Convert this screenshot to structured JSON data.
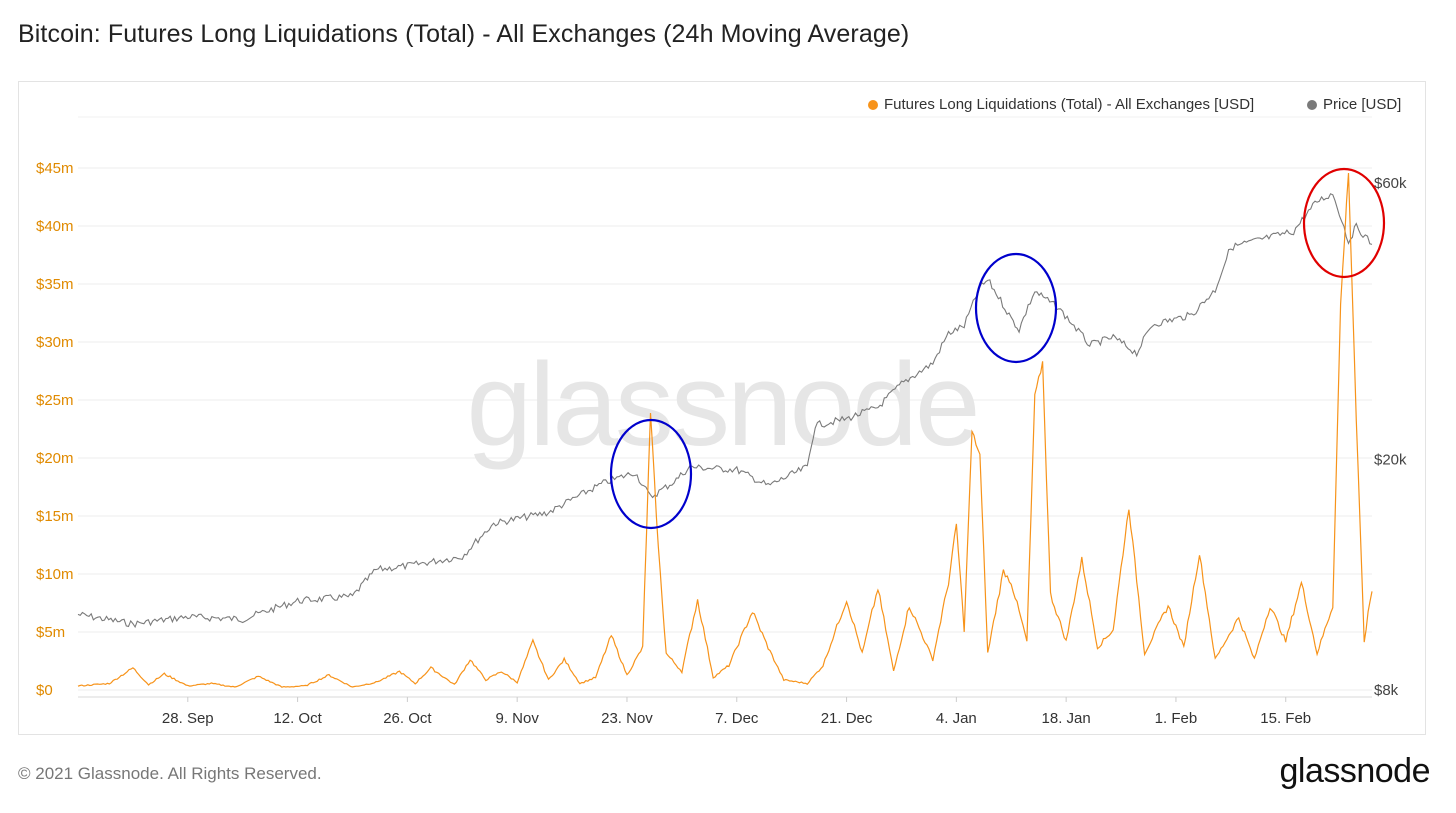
{
  "title": "Bitcoin: Futures Long Liquidations (Total) - All Exchanges (24h Moving Average)",
  "footer": {
    "copyright": "© 2021 Glassnode. All Rights Reserved.",
    "logo_text": "glassnode"
  },
  "watermark": "glassnode",
  "colors": {
    "liquidations": "#f7931a",
    "price": "#7a7a7a",
    "left_axis_text": "#e08a00",
    "right_axis_text": "#444444",
    "circle_blue": "#0000cc",
    "circle_red": "#e00000"
  },
  "chart_data": {
    "type": "line",
    "x_axis": {
      "start": "2020-09-14",
      "end": "2021-02-26",
      "ticks": [
        "28. Sep",
        "12. Oct",
        "26. Oct",
        "9. Nov",
        "23. Nov",
        "7. Dec",
        "21. Dec",
        "4. Jan",
        "18. Jan",
        "1. Feb",
        "15. Feb"
      ]
    },
    "y_left": {
      "ticks": [
        "$0",
        "$5m",
        "$10m",
        "$15m",
        "$20m",
        "$25m",
        "$30m",
        "$35m",
        "$40m",
        "$45m"
      ],
      "range": [
        0,
        45000000
      ]
    },
    "y_right": {
      "scale": "log",
      "ticks": [
        "$8k",
        "$20k",
        "$60k"
      ],
      "range": [
        8000,
        60000
      ]
    },
    "legend": {
      "position": "top-right"
    },
    "series": [
      {
        "name": "Futures Long Liquidations (Total) - All Exchanges [USD]",
        "axis": "left",
        "points": [
          [
            "2020-09-14",
            0.3
          ],
          [
            "2020-09-18",
            0.5
          ],
          [
            "2020-09-21",
            1.8
          ],
          [
            "2020-09-23",
            0.4
          ],
          [
            "2020-09-25",
            1.3
          ],
          [
            "2020-09-28",
            0.3
          ],
          [
            "2020-10-01",
            0.5
          ],
          [
            "2020-10-04",
            0.2
          ],
          [
            "2020-10-07",
            1.1
          ],
          [
            "2020-10-10",
            0.2
          ],
          [
            "2020-10-13",
            0.3
          ],
          [
            "2020-10-16",
            1.2
          ],
          [
            "2020-10-19",
            0.2
          ],
          [
            "2020-10-22",
            0.6
          ],
          [
            "2020-10-25",
            1.5
          ],
          [
            "2020-10-27",
            0.5
          ],
          [
            "2020-10-29",
            1.8
          ],
          [
            "2020-11-01",
            0.4
          ],
          [
            "2020-11-03",
            2.5
          ],
          [
            "2020-11-05",
            0.8
          ],
          [
            "2020-11-07",
            1.5
          ],
          [
            "2020-11-09",
            0.6
          ],
          [
            "2020-11-11",
            4.0
          ],
          [
            "2020-11-13",
            0.8
          ],
          [
            "2020-11-15",
            2.5
          ],
          [
            "2020-11-17",
            0.5
          ],
          [
            "2020-11-19",
            1.0
          ],
          [
            "2020-11-21",
            4.5
          ],
          [
            "2020-11-23",
            1.2
          ],
          [
            "2020-11-25",
            3.5
          ],
          [
            "2020-11-26",
            23.5
          ],
          [
            "2020-11-27",
            12.0
          ],
          [
            "2020-11-28",
            3.0
          ],
          [
            "2020-11-30",
            1.5
          ],
          [
            "2020-12-02",
            7.5
          ],
          [
            "2020-12-04",
            1.0
          ],
          [
            "2020-12-06",
            2.0
          ],
          [
            "2020-12-09",
            6.5
          ],
          [
            "2020-12-11",
            3.5
          ],
          [
            "2020-12-13",
            0.8
          ],
          [
            "2020-12-16",
            0.5
          ],
          [
            "2020-12-18",
            2.0
          ],
          [
            "2020-12-21",
            7.5
          ],
          [
            "2020-12-23",
            3.0
          ],
          [
            "2020-12-25",
            8.5
          ],
          [
            "2020-12-27",
            1.5
          ],
          [
            "2020-12-29",
            7.0
          ],
          [
            "2021-01-01",
            2.5
          ],
          [
            "2021-01-03",
            9.0
          ],
          [
            "2021-01-04",
            14.0
          ],
          [
            "2021-01-05",
            5.0
          ],
          [
            "2021-01-06",
            22.0
          ],
          [
            "2021-01-07",
            20.0
          ],
          [
            "2021-01-08",
            3.0
          ],
          [
            "2021-01-10",
            10.0
          ],
          [
            "2021-01-11",
            9.0
          ],
          [
            "2021-01-13",
            4.0
          ],
          [
            "2021-01-14",
            25.0
          ],
          [
            "2021-01-15",
            28.0
          ],
          [
            "2021-01-16",
            8.0
          ],
          [
            "2021-01-18",
            4.0
          ],
          [
            "2021-01-20",
            11.0
          ],
          [
            "2021-01-22",
            3.5
          ],
          [
            "2021-01-24",
            5.0
          ],
          [
            "2021-01-26",
            15.5
          ],
          [
            "2021-01-28",
            3.0
          ],
          [
            "2021-01-31",
            7.0
          ],
          [
            "2021-02-02",
            3.5
          ],
          [
            "2021-02-04",
            11.5
          ],
          [
            "2021-02-06",
            2.5
          ],
          [
            "2021-02-09",
            6.0
          ],
          [
            "2021-02-11",
            2.5
          ],
          [
            "2021-02-13",
            7.0
          ],
          [
            "2021-02-15",
            4.0
          ],
          [
            "2021-02-17",
            9.0
          ],
          [
            "2021-02-19",
            3.0
          ],
          [
            "2021-02-21",
            7.0
          ],
          [
            "2021-02-22",
            33.0
          ],
          [
            "2021-02-23",
            44.5
          ],
          [
            "2021-02-24",
            23.0
          ],
          [
            "2021-02-25",
            4.0
          ],
          [
            "2021-02-26",
            8.5
          ]
        ]
      },
      {
        "name": "Price [USD]",
        "axis": "right",
        "points": [
          [
            "2020-09-14",
            10800
          ],
          [
            "2020-09-21",
            10400
          ],
          [
            "2020-09-28",
            10700
          ],
          [
            "2020-10-05",
            10600
          ],
          [
            "2020-10-12",
            11400
          ],
          [
            "2020-10-19",
            11600
          ],
          [
            "2020-10-22",
            12900
          ],
          [
            "2020-10-26",
            13100
          ],
          [
            "2020-11-02",
            13600
          ],
          [
            "2020-11-06",
            15500
          ],
          [
            "2020-11-13",
            16200
          ],
          [
            "2020-11-20",
            18200
          ],
          [
            "2020-11-24",
            19000
          ],
          [
            "2020-11-26",
            17200
          ],
          [
            "2020-11-29",
            18300
          ],
          [
            "2020-12-01",
            19400
          ],
          [
            "2020-12-07",
            19200
          ],
          [
            "2020-12-11",
            18000
          ],
          [
            "2020-12-16",
            19400
          ],
          [
            "2020-12-17",
            22900
          ],
          [
            "2020-12-21",
            23500
          ],
          [
            "2020-12-25",
            24600
          ],
          [
            "2020-12-28",
            27000
          ],
          [
            "2021-01-01",
            29300
          ],
          [
            "2021-01-03",
            33000
          ],
          [
            "2021-01-05",
            34000
          ],
          [
            "2021-01-07",
            39500
          ],
          [
            "2021-01-08",
            40800
          ],
          [
            "2021-01-11",
            35000
          ],
          [
            "2021-01-12",
            33500
          ],
          [
            "2021-01-14",
            39000
          ],
          [
            "2021-01-17",
            36500
          ],
          [
            "2021-01-21",
            31500
          ],
          [
            "2021-01-24",
            32500
          ],
          [
            "2021-01-27",
            30500
          ],
          [
            "2021-01-29",
            34200
          ],
          [
            "2021-02-03",
            35500
          ],
          [
            "2021-02-06",
            39200
          ],
          [
            "2021-02-08",
            46500
          ],
          [
            "2021-02-12",
            48000
          ],
          [
            "2021-02-16",
            49500
          ],
          [
            "2021-02-19",
            55800
          ],
          [
            "2021-02-21",
            57500
          ],
          [
            "2021-02-23",
            47500
          ],
          [
            "2021-02-24",
            50500
          ],
          [
            "2021-02-26",
            47000
          ]
        ]
      }
    ],
    "annotations": [
      {
        "shape": "ellipse",
        "color": "blue",
        "date": "2020-11-26"
      },
      {
        "shape": "ellipse",
        "color": "blue",
        "date": "2021-01-12"
      },
      {
        "shape": "ellipse",
        "color": "red",
        "date": "2021-02-23"
      }
    ]
  }
}
